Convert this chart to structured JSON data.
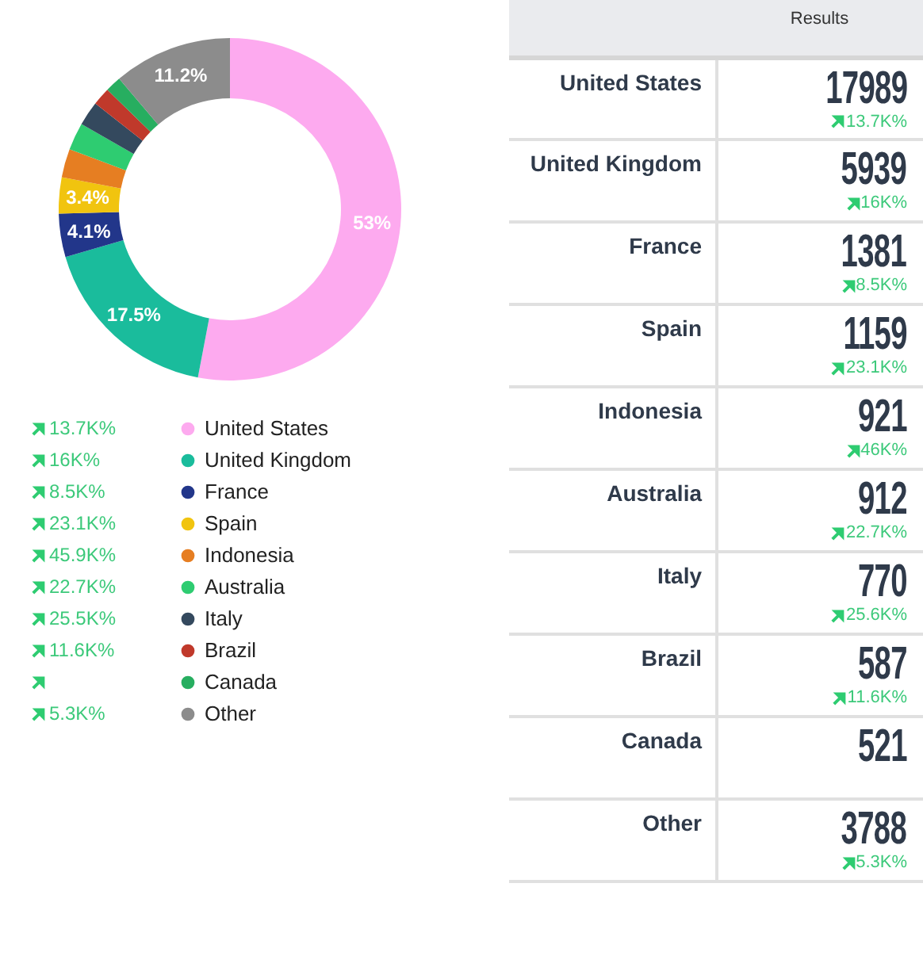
{
  "chart_data": [
    {
      "type": "donut",
      "categories": [
        "United States",
        "United Kingdom",
        "France",
        "Spain",
        "Indonesia",
        "Australia",
        "Italy",
        "Brazil",
        "Canada",
        "Other"
      ],
      "values": [
        53,
        17.5,
        4.1,
        3.4,
        2.7,
        2.6,
        2.3,
        1.7,
        1.5,
        11.2
      ],
      "colors": [
        "#fdaaef",
        "#1abc9c",
        "#22368a",
        "#f1c40f",
        "#e67e22",
        "#2ecc71",
        "#34495e",
        "#c0392b",
        "#27ae60",
        "#8c8c8c"
      ],
      "value_labels": [
        "53%",
        "17.5%",
        "4.1%",
        "3.4%",
        null,
        null,
        null,
        null,
        null,
        "11.2%"
      ],
      "legend": "bottom",
      "annotations": [
        {
          "text": "13.7K%",
          "x": "United States"
        },
        {
          "text": "16K%",
          "x": "United Kingdom"
        },
        {
          "text": "8.5K%",
          "x": "France"
        },
        {
          "text": "23.1K%",
          "x": "Spain"
        },
        {
          "text": "45.9K%",
          "x": "Indonesia"
        },
        {
          "text": "22.7K%",
          "x": "Australia"
        },
        {
          "text": "25.5K%",
          "x": "Italy"
        },
        {
          "text": "11.6K%",
          "x": "Brazil"
        },
        {
          "text": "5.3K%",
          "x": "Other"
        }
      ]
    },
    {
      "type": "other",
      "title": "Results",
      "categories": [
        "United States",
        "United Kingdom",
        "France",
        "Spain",
        "Indonesia",
        "Australia",
        "Italy",
        "Brazil",
        "Canada",
        "Other"
      ],
      "values": [
        17989,
        5939,
        1381,
        1159,
        921,
        912,
        770,
        587,
        521,
        3788
      ],
      "data_labels": true,
      "annotations": [
        {
          "text": "13.7K%",
          "x": "United States"
        },
        {
          "text": "16K%",
          "x": "United Kingdom"
        },
        {
          "text": "8.5K%",
          "x": "France"
        },
        {
          "text": "23.1K%",
          "x": "Spain"
        },
        {
          "text": "46K%",
          "x": "Indonesia"
        },
        {
          "text": "22.7K%",
          "x": "Australia"
        },
        {
          "text": "25.6K%",
          "x": "Italy"
        },
        {
          "text": "11.6K%",
          "x": "Brazil"
        },
        {
          "text": "5.3K%",
          "x": "Other"
        }
      ]
    }
  ]
}
